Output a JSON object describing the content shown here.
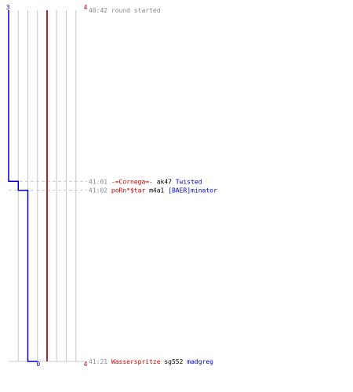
{
  "chart_data": {
    "type": "line",
    "title": "",
    "xlabel": "",
    "ylabel": "",
    "time_start": "40:42",
    "time_end": "41:21",
    "team_blue": {
      "color": "#0000cc",
      "start_label": "3",
      "end_label": "0",
      "alive_steps": [
        {
          "time": "40:42",
          "alive": 3
        },
        {
          "time": "41:01",
          "alive": 2
        },
        {
          "time": "41:02",
          "alive": 1
        },
        {
          "time": "41:21",
          "alive": 0
        }
      ]
    },
    "team_red": {
      "color": "#cc0000",
      "start_label": "4",
      "end_label": "4",
      "alive_steps": [
        {
          "time": "40:42",
          "alive": 4
        },
        {
          "time": "41:21",
          "alive": 4
        }
      ]
    },
    "x_max": 8,
    "events": [
      {
        "time": "40:42",
        "type": "round",
        "text": "round started"
      },
      {
        "time": "41:01",
        "type": "kill",
        "killer": "-=Cornega=-",
        "weapon": "ak47",
        "victim": "Twisted"
      },
      {
        "time": "41:02",
        "type": "kill",
        "killer": "poRn*$tar",
        "weapon": "m4a1",
        "victim": "[BAER]minator"
      },
      {
        "time": "41:21",
        "type": "kill",
        "killer": "Wasserspritze",
        "weapon": "sg552",
        "victim": "madgreg"
      }
    ],
    "colors": {
      "time": "#888888",
      "killer": "#cc0000",
      "weapon": "#000000",
      "victim": "#0000cc",
      "grid": "#c8c8c8",
      "midline": "#808080",
      "dashed": "#c8c8c8"
    }
  }
}
